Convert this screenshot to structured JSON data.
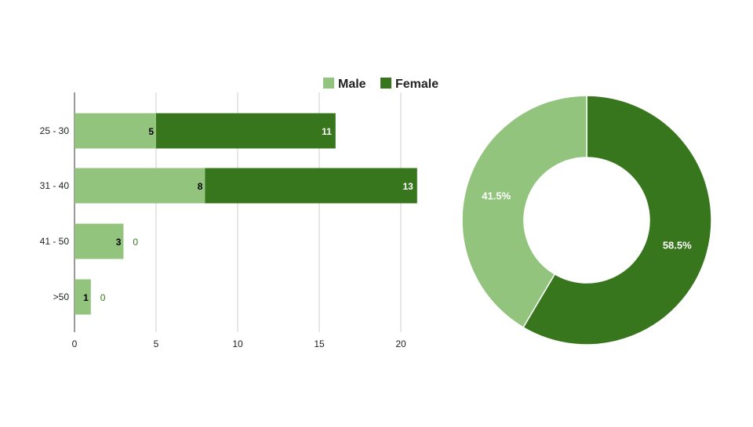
{
  "chart_data": [
    {
      "type": "bar",
      "orientation": "horizontal",
      "stacked": true,
      "categories": [
        "25 - 30",
        "31 - 40",
        "41 - 50",
        ">50"
      ],
      "series": [
        {
          "name": "Male",
          "values": [
            5,
            8,
            3,
            1
          ],
          "color": "#93c47d"
        },
        {
          "name": "Female",
          "values": [
            11,
            13,
            0,
            0
          ],
          "color": "#38761d"
        }
      ],
      "xlim": [
        0,
        22
      ],
      "xticks": [
        "0",
        "5",
        "10",
        "15",
        "20"
      ],
      "grid": true,
      "legend": "top",
      "data_labels": true
    },
    {
      "type": "pie",
      "donut": true,
      "slices": [
        {
          "name": "Male",
          "value": 41.5,
          "label": "41.5%",
          "color": "#93c47d"
        },
        {
          "name": "Female",
          "value": 58.5,
          "label": "58.5%",
          "color": "#38761d"
        }
      ]
    }
  ]
}
